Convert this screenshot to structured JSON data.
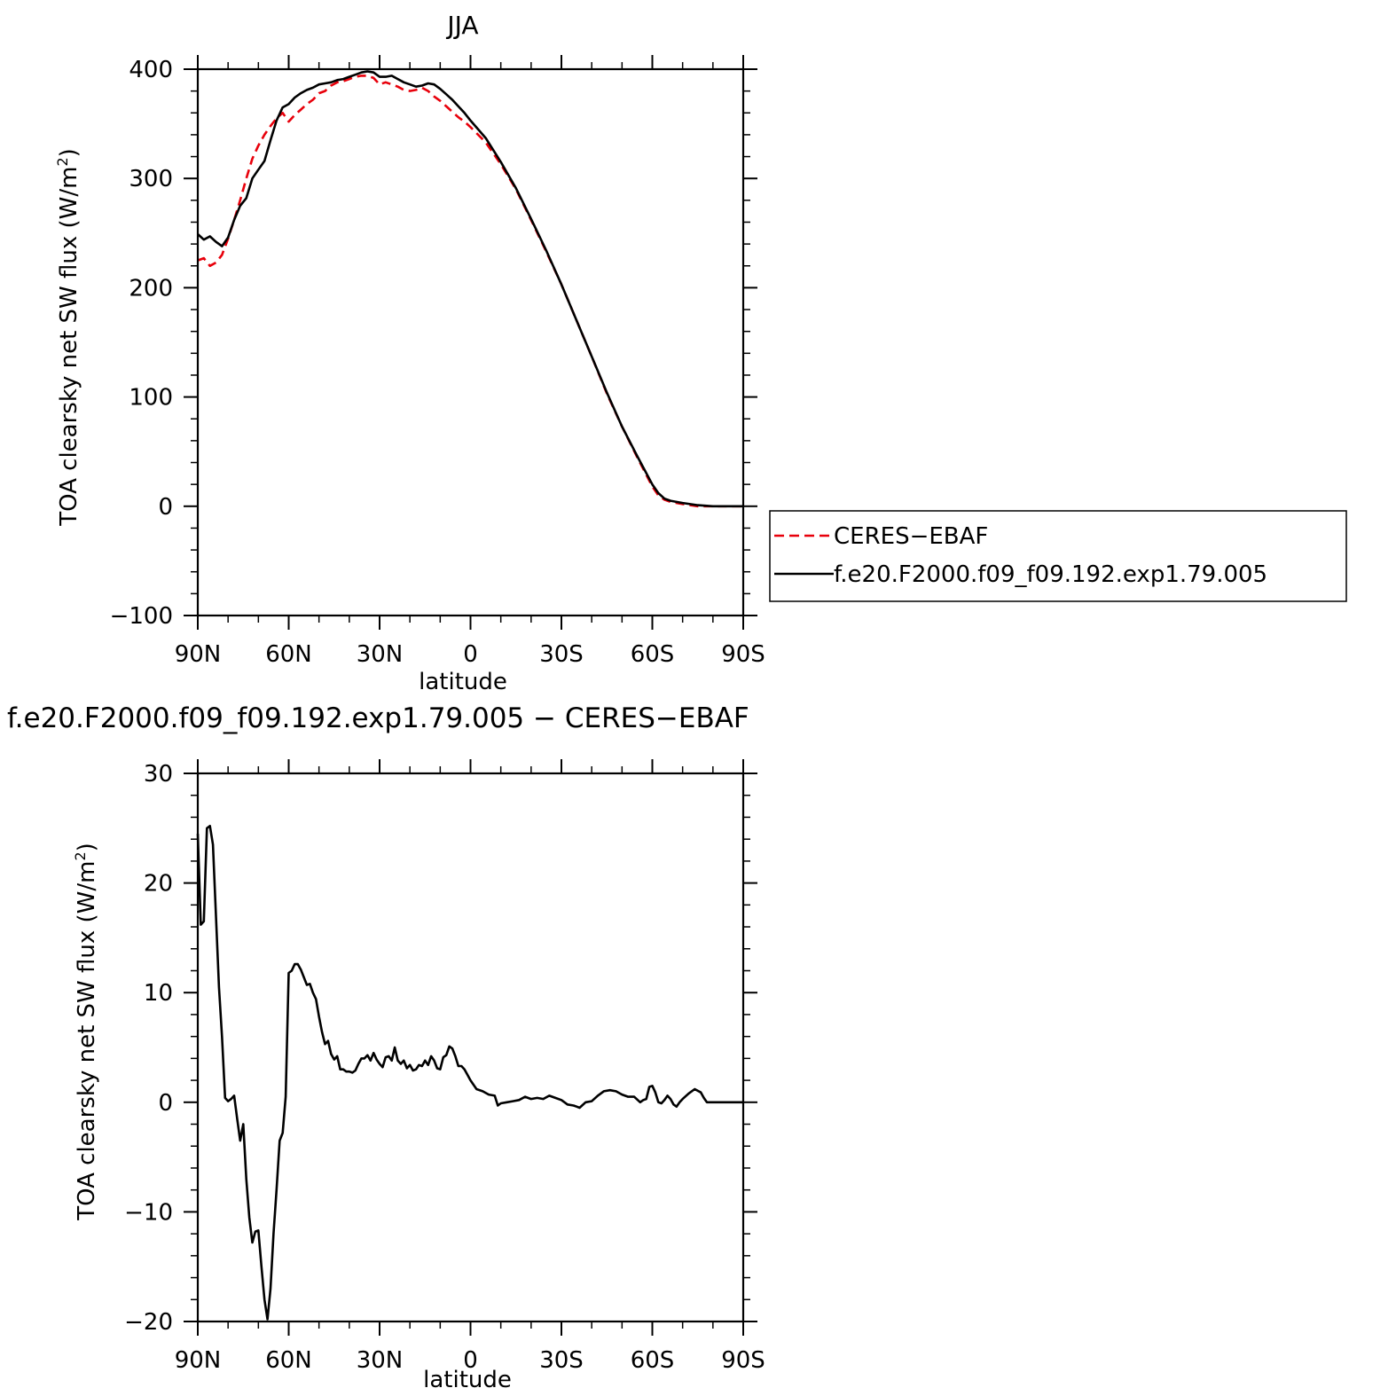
{
  "colors": {
    "ceres": "#e8000b",
    "model": "#000000",
    "axis": "#000000"
  },
  "legend": [
    {
      "label": "CERES−EBAF",
      "color": "#e8000b",
      "style": "dashed"
    },
    {
      "label": "f.e20.F2000.f09_f09.192.exp1.79.005",
      "color": "#000000",
      "style": "solid"
    }
  ],
  "chart_data": [
    {
      "type": "line",
      "title": "JJA",
      "xlabel": "latitude",
      "ylabel": "TOA clearsky net SW flux (W/m²)",
      "ylabel_main": "TOA clearsky net SW flux (W/m",
      "ylabel_sup": "2",
      "ylabel_close": ")",
      "xlim": [
        90,
        -90
      ],
      "ylim": [
        -100,
        400
      ],
      "yticks": [
        -100,
        0,
        100,
        200,
        300,
        400
      ],
      "ytick_labels": [
        "−100",
        "0",
        "100",
        "200",
        "300",
        "400"
      ],
      "xticks": [
        90,
        60,
        30,
        0,
        -30,
        -60,
        -90
      ],
      "xtick_labels": [
        "90N",
        "60N",
        "30N",
        "0",
        "30S",
        "60S",
        "90S"
      ],
      "legend_position": "right",
      "series": [
        {
          "name": "CERES−EBAF",
          "style": "dashed",
          "x": [
            90,
            88,
            86,
            84,
            82,
            80,
            78,
            76,
            74,
            72,
            70,
            68,
            66,
            64,
            62,
            60,
            58,
            56,
            54,
            52,
            50,
            48,
            46,
            44,
            42,
            40,
            38,
            36,
            34,
            32,
            30,
            28,
            26,
            24,
            22,
            20,
            18,
            16,
            14,
            12,
            10,
            8,
            6,
            4,
            2,
            0,
            -5,
            -10,
            -15,
            -20,
            -25,
            -30,
            -35,
            -40,
            -45,
            -50,
            -55,
            -60,
            -62,
            -64,
            -66,
            -68,
            -70,
            -75,
            -80,
            -85,
            -90
          ],
          "y": [
            225,
            227,
            220,
            223,
            230,
            245,
            262,
            280,
            300,
            318,
            330,
            340,
            348,
            355,
            360,
            352,
            358,
            363,
            368,
            372,
            378,
            380,
            385,
            388,
            389,
            391,
            393,
            394,
            394,
            392,
            386,
            388,
            386,
            384,
            381,
            380,
            381,
            383,
            380,
            375,
            371,
            366,
            361,
            356,
            352,
            347,
            333,
            313,
            290,
            262,
            233,
            203,
            170,
            137,
            103,
            73,
            45,
            18,
            10,
            6,
            4,
            3,
            2,
            0,
            0,
            0,
            0
          ]
        },
        {
          "name": "f.e20.F2000.f09_f09.192.exp1.79.005",
          "style": "solid",
          "x": [
            90,
            88,
            86,
            84,
            82,
            80,
            78,
            76,
            74,
            72,
            70,
            68,
            66,
            64,
            62,
            60,
            58,
            56,
            54,
            52,
            50,
            48,
            46,
            44,
            42,
            40,
            38,
            36,
            34,
            32,
            30,
            28,
            26,
            24,
            22,
            20,
            18,
            16,
            14,
            12,
            10,
            8,
            6,
            4,
            2,
            0,
            -5,
            -10,
            -15,
            -20,
            -25,
            -30,
            -35,
            -40,
            -45,
            -50,
            -55,
            -60,
            -62,
            -64,
            -66,
            -68,
            -70,
            -75,
            -80,
            -85,
            -90
          ],
          "y": [
            249,
            244,
            247,
            242,
            238,
            246,
            262,
            275,
            282,
            300,
            308,
            316,
            335,
            353,
            365,
            368,
            374,
            378,
            381,
            383,
            386,
            387,
            388,
            390,
            391,
            393,
            395,
            397,
            398,
            397,
            393,
            393,
            394,
            391,
            388,
            386,
            384,
            385,
            387,
            386,
            382,
            377,
            372,
            366,
            360,
            353,
            337,
            315,
            291,
            263,
            234,
            203,
            170,
            137,
            104,
            73,
            46,
            20,
            12,
            7,
            5,
            4,
            3,
            1,
            0,
            0,
            0
          ]
        }
      ]
    },
    {
      "type": "line",
      "title": "f.e20.F2000.f09_f09.192.exp1.79.005 − CERES−EBAF",
      "xlabel": "latitude",
      "ylabel": "TOA clearsky net SW flux (W/m²)",
      "ylabel_main": "TOA clearsky net SW flux (W/m",
      "ylabel_sup": "2",
      "ylabel_close": ")",
      "xlim": [
        90,
        -90
      ],
      "ylim": [
        -20,
        30
      ],
      "yticks": [
        -20,
        -10,
        0,
        10,
        20,
        30
      ],
      "ytick_labels": [
        "−20",
        "−10",
        "0",
        "10",
        "20",
        "30"
      ],
      "xticks": [
        90,
        60,
        30,
        0,
        -30,
        -60,
        -90
      ],
      "xtick_labels": [
        "90N",
        "60N",
        "30N",
        "0",
        "30S",
        "60S",
        "90S"
      ],
      "series": [
        {
          "style": "solid",
          "x": [
            90,
            89,
            88,
            87,
            86,
            85,
            84,
            83,
            82,
            81,
            80,
            79,
            78,
            77,
            76,
            75,
            74,
            73,
            72,
            71,
            70,
            69,
            68,
            67,
            66,
            65,
            64,
            63,
            62,
            61,
            60,
            59,
            58,
            57,
            56,
            55,
            54,
            53,
            52,
            51,
            50,
            49,
            48,
            47,
            46,
            45,
            44,
            43,
            42,
            41,
            40,
            39,
            38,
            37,
            36,
            35,
            34,
            33,
            32,
            31,
            30,
            29,
            28,
            27,
            26,
            25,
            24,
            23,
            22,
            21,
            20,
            19,
            18,
            17,
            16,
            15,
            14,
            13,
            12,
            11,
            10,
            9,
            8,
            7,
            6,
            5,
            4,
            3,
            2,
            1,
            0,
            -2,
            -4,
            -6,
            -8,
            -9,
            -10,
            -12,
            -14,
            -16,
            -18,
            -20,
            -22,
            -24,
            -26,
            -28,
            -30,
            -32,
            -34,
            -35,
            -36,
            -38,
            -40,
            -42,
            -44,
            -46,
            -48,
            -50,
            -52,
            -54,
            -56,
            -57,
            -58,
            -59,
            -60,
            -61,
            -62,
            -63,
            -64,
            -65,
            -66,
            -67,
            -68,
            -69,
            -70,
            -72,
            -74,
            -76,
            -77,
            -78,
            -80,
            -85,
            -90
          ],
          "y": [
            24.5,
            16.2,
            16.5,
            25.0,
            25.2,
            23.5,
            17.0,
            10.5,
            6.0,
            0.4,
            0.1,
            0.3,
            0.6,
            -1.5,
            -3.5,
            -2.0,
            -7.0,
            -10.5,
            -12.8,
            -11.8,
            -11.7,
            -15.0,
            -18.0,
            -19.8,
            -17.0,
            -12.0,
            -8.0,
            -3.5,
            -2.8,
            0.5,
            11.8,
            12.0,
            12.6,
            12.6,
            12.1,
            11.4,
            10.7,
            10.8,
            10.0,
            9.4,
            7.8,
            6.4,
            5.3,
            5.6,
            4.4,
            3.9,
            4.2,
            3.0,
            3.0,
            2.8,
            2.8,
            2.7,
            2.9,
            3.5,
            4.0,
            4.0,
            4.3,
            3.8,
            4.5,
            3.9,
            3.5,
            3.2,
            4.1,
            4.2,
            3.8,
            5.0,
            3.8,
            3.5,
            3.8,
            3.1,
            3.4,
            2.9,
            3.0,
            3.4,
            3.3,
            3.8,
            3.4,
            4.2,
            3.8,
            3.1,
            3.0,
            4.1,
            4.3,
            5.1,
            4.9,
            4.2,
            3.3,
            3.3,
            3.0,
            2.5,
            2.0,
            1.2,
            1.0,
            0.7,
            0.6,
            -0.3,
            -0.1,
            0.0,
            0.1,
            0.2,
            0.5,
            0.3,
            0.4,
            0.3,
            0.6,
            0.4,
            0.2,
            -0.2,
            -0.3,
            -0.4,
            -0.5,
            0.0,
            0.1,
            0.6,
            1.0,
            1.1,
            1.0,
            0.7,
            0.5,
            0.5,
            0.0,
            0.2,
            0.3,
            1.4,
            1.5,
            0.9,
            0.0,
            -0.1,
            0.2,
            0.6,
            0.3,
            -0.2,
            -0.4,
            0.0,
            0.3,
            0.8,
            1.2,
            0.9,
            0.4,
            0.0,
            0.0,
            0.0,
            0.0
          ]
        }
      ]
    }
  ]
}
